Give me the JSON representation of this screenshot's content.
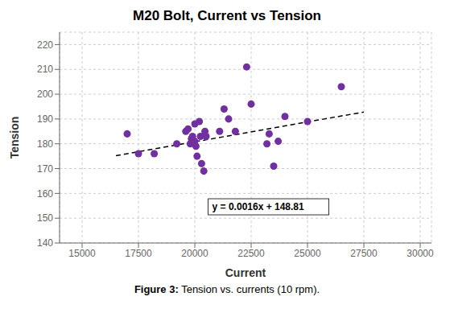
{
  "chart_data": {
    "type": "scatter",
    "title": "M20 Bolt, Current vs Tension",
    "xlabel": "Current",
    "ylabel": "Tension",
    "caption": "Figure 3: Tension vs. currents (10 rpm).",
    "x": [
      17000,
      17500,
      18200,
      19200,
      19600,
      19700,
      19800,
      19850,
      19900,
      20000,
      20000,
      20050,
      20100,
      20200,
      20250,
      20300,
      20400,
      20450,
      20500,
      21100,
      21300,
      21500,
      21800,
      22300,
      22500,
      23200,
      23300,
      23500,
      23700,
      24000,
      25000,
      26500
    ],
    "values": [
      184,
      176,
      176,
      180,
      185,
      186,
      180,
      182,
      183,
      181,
      188,
      179,
      175,
      189,
      183,
      172,
      169,
      185,
      183,
      185,
      194,
      190,
      185,
      211,
      196,
      180,
      184,
      171,
      181,
      191,
      189,
      203
    ],
    "color": "#7030A0",
    "xlim": [
      14000,
      30500
    ],
    "ylim": [
      140,
      225
    ],
    "xticks": [
      15000,
      17500,
      20000,
      22500,
      25000,
      27500,
      30000
    ],
    "yticks": [
      140,
      150,
      160,
      170,
      180,
      190,
      200,
      210,
      220
    ],
    "grid": true,
    "trendline": {
      "x": [
        16500,
        27500
      ],
      "values": [
        175.21,
        192.81
      ],
      "color": "#000000",
      "line_style": "dashed"
    },
    "annotations": [
      {
        "text": "y = 0.0016x + 148.81",
        "x": 20700,
        "y": 152
      }
    ]
  }
}
